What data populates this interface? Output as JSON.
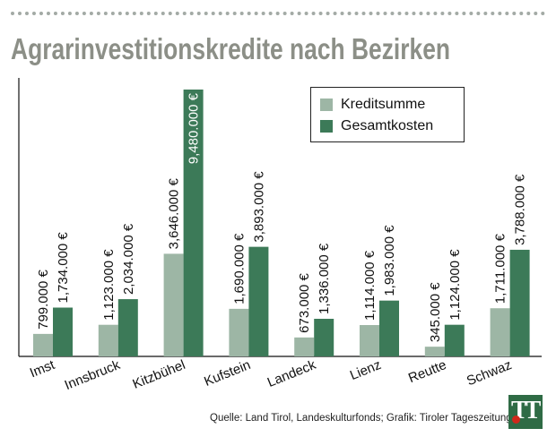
{
  "title": "Agrarinvestitionskredite nach Bezirken",
  "source": "Quelle: Land Tirol, Landeskulturfonds; Grafik: Tiroler Tageszeitung",
  "logo_text": "TT",
  "colors": {
    "kreditsumme": "#9db6a5",
    "gesamtkosten": "#3c7a58",
    "title": "#8c8f87"
  },
  "chart_data": {
    "type": "bar",
    "title": "Agrarinvestitionskredite nach Bezirken",
    "xlabel": "",
    "ylabel": "",
    "categories": [
      "Imst",
      "Innsbruck",
      "Kitzbühel",
      "Kufstein",
      "Landeck",
      "Lienz",
      "Reutte",
      "Schwaz"
    ],
    "series": [
      {
        "name": "Kreditsumme",
        "values": [
          799000,
          1123000,
          3646000,
          1690000,
          673000,
          1114000,
          345000,
          1711000
        ],
        "labels": [
          "799.000 €",
          "1,123.000 €",
          "3,646.000 €",
          "1,690.000 €",
          "673.000 €",
          "1,114.000 €",
          "345.000 €",
          "1,711.000 €"
        ]
      },
      {
        "name": "Gesamtkosten",
        "values": [
          1734000,
          2034000,
          9480000,
          3893000,
          1336000,
          1983000,
          1124000,
          3788000
        ],
        "labels": [
          "1,734.000 €",
          "2,034.000 €",
          "9,480.000 €",
          "3,893.000 €",
          "1,336.000 €",
          "1,983.000 €",
          "1,124.000 €",
          "3,788.000 €"
        ]
      }
    ],
    "ylim": [
      0,
      9480000
    ],
    "grid": false,
    "legend": "top-right"
  }
}
